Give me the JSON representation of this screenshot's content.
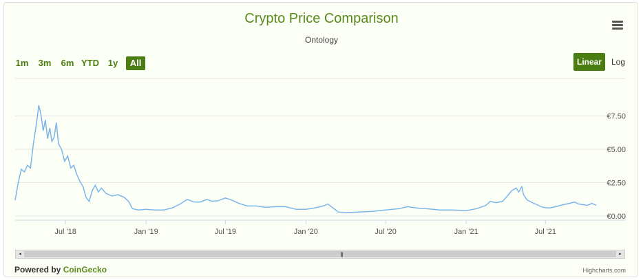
{
  "colors": {
    "line": "#7cb5ec",
    "accent": "#4a7d12",
    "title": "#5a8a1e"
  },
  "header": {
    "title": "Crypto Price Comparison",
    "subtitle": "Ontology",
    "menu_icon": "hamburger-menu-icon"
  },
  "range_selector": {
    "buttons": [
      "1m",
      "3m",
      "6m",
      "YTD",
      "1y",
      "All"
    ],
    "selected": "All"
  },
  "scale_toggle": {
    "linear": "Linear",
    "log": "Log",
    "selected": "Linear"
  },
  "scrollbar": {
    "left_arrow": "◂",
    "right_arrow": "▸",
    "grip": "|||"
  },
  "footer": {
    "powered_prefix": "Powered by ",
    "powered_link": "CoinGecko",
    "credits": "Highcharts.com"
  },
  "chart_data": {
    "type": "line",
    "title": "Crypto Price Comparison",
    "subtitle": "Ontology",
    "series": [
      {
        "values": [
          [
            "2018-03-08",
            1.2
          ],
          [
            "2018-03-15",
            2.5
          ],
          [
            "2018-03-22",
            3.5
          ],
          [
            "2018-03-29",
            3.3
          ],
          [
            "2018-04-05",
            3.8
          ],
          [
            "2018-04-12",
            3.6
          ],
          [
            "2018-04-19",
            5.5
          ],
          [
            "2018-04-26",
            7.0
          ],
          [
            "2018-05-01",
            8.3
          ],
          [
            "2018-05-06",
            7.6
          ],
          [
            "2018-05-11",
            6.4
          ],
          [
            "2018-05-16",
            7.2
          ],
          [
            "2018-05-21",
            5.8
          ],
          [
            "2018-05-26",
            6.6
          ],
          [
            "2018-05-31",
            5.6
          ],
          [
            "2018-06-05",
            5.9
          ],
          [
            "2018-06-10",
            7.0
          ],
          [
            "2018-06-15",
            5.4
          ],
          [
            "2018-06-22",
            5.0
          ],
          [
            "2018-06-29",
            4.1
          ],
          [
            "2018-07-06",
            4.5
          ],
          [
            "2018-07-13",
            3.6
          ],
          [
            "2018-07-20",
            3.8
          ],
          [
            "2018-07-27",
            3.1
          ],
          [
            "2018-08-03",
            2.6
          ],
          [
            "2018-08-10",
            2.2
          ],
          [
            "2018-08-17",
            1.4
          ],
          [
            "2018-08-24",
            1.1
          ],
          [
            "2018-08-31",
            1.9
          ],
          [
            "2018-09-07",
            2.3
          ],
          [
            "2018-09-14",
            1.8
          ],
          [
            "2018-09-21",
            2.1
          ],
          [
            "2018-10-01",
            1.7
          ],
          [
            "2018-10-15",
            1.5
          ],
          [
            "2018-10-29",
            1.6
          ],
          [
            "2018-11-12",
            1.4
          ],
          [
            "2018-11-22",
            1.1
          ],
          [
            "2018-12-01",
            0.55
          ],
          [
            "2018-12-15",
            0.45
          ],
          [
            "2019-01-01",
            0.5
          ],
          [
            "2019-01-20",
            0.45
          ],
          [
            "2019-02-10",
            0.45
          ],
          [
            "2019-03-01",
            0.6
          ],
          [
            "2019-03-20",
            0.9
          ],
          [
            "2019-04-05",
            1.25
          ],
          [
            "2019-04-20",
            1.05
          ],
          [
            "2019-05-05",
            1.05
          ],
          [
            "2019-05-20",
            1.25
          ],
          [
            "2019-06-01",
            1.1
          ],
          [
            "2019-06-15",
            1.15
          ],
          [
            "2019-07-01",
            1.35
          ],
          [
            "2019-07-15",
            1.2
          ],
          [
            "2019-08-01",
            0.95
          ],
          [
            "2019-08-20",
            0.75
          ],
          [
            "2019-09-10",
            0.75
          ],
          [
            "2019-10-01",
            0.65
          ],
          [
            "2019-10-25",
            0.7
          ],
          [
            "2019-11-15",
            0.7
          ],
          [
            "2019-12-10",
            0.5
          ],
          [
            "2020-01-01",
            0.5
          ],
          [
            "2020-01-20",
            0.6
          ],
          [
            "2020-02-10",
            0.75
          ],
          [
            "2020-02-20",
            0.9
          ],
          [
            "2020-03-01",
            0.65
          ],
          [
            "2020-03-15",
            0.3
          ],
          [
            "2020-04-01",
            0.25
          ],
          [
            "2020-05-01",
            0.3
          ],
          [
            "2020-06-01",
            0.35
          ],
          [
            "2020-07-01",
            0.45
          ],
          [
            "2020-08-01",
            0.55
          ],
          [
            "2020-08-20",
            0.7
          ],
          [
            "2020-09-10",
            0.6
          ],
          [
            "2020-10-01",
            0.55
          ],
          [
            "2020-11-01",
            0.45
          ],
          [
            "2020-12-01",
            0.45
          ],
          [
            "2021-01-01",
            0.4
          ],
          [
            "2021-01-25",
            0.55
          ],
          [
            "2021-02-15",
            0.8
          ],
          [
            "2021-02-25",
            1.1
          ],
          [
            "2021-03-10",
            1.0
          ],
          [
            "2021-03-25",
            1.1
          ],
          [
            "2021-04-05",
            1.5
          ],
          [
            "2021-04-15",
            1.9
          ],
          [
            "2021-04-25",
            2.1
          ],
          [
            "2021-05-01",
            1.8
          ],
          [
            "2021-05-08",
            2.2
          ],
          [
            "2021-05-12",
            1.6
          ],
          [
            "2021-05-20",
            1.2
          ],
          [
            "2021-06-01",
            1.0
          ],
          [
            "2021-06-15",
            0.8
          ],
          [
            "2021-06-25",
            0.65
          ],
          [
            "2021-07-10",
            0.6
          ],
          [
            "2021-07-25",
            0.7
          ],
          [
            "2021-08-10",
            0.85
          ],
          [
            "2021-08-25",
            0.95
          ],
          [
            "2021-09-05",
            1.05
          ],
          [
            "2021-09-15",
            0.9
          ],
          [
            "2021-09-25",
            0.85
          ],
          [
            "2021-10-05",
            0.8
          ],
          [
            "2021-10-15",
            0.95
          ],
          [
            "2021-10-25",
            0.8
          ]
        ]
      }
    ],
    "x_ticks": [
      {
        "date": "2018-07-01",
        "label": "Jul '18"
      },
      {
        "date": "2019-01-01",
        "label": "Jan '19"
      },
      {
        "date": "2019-07-01",
        "label": "Jul '19"
      },
      {
        "date": "2020-01-01",
        "label": "Jan '20"
      },
      {
        "date": "2020-07-01",
        "label": "Jul '20"
      },
      {
        "date": "2021-01-01",
        "label": "Jan '21"
      },
      {
        "date": "2021-07-01",
        "label": "Jul '21"
      }
    ],
    "y_ticks": [
      {
        "value": 0,
        "label": "€0.00"
      },
      {
        "value": 2.5,
        "label": "€2.50"
      },
      {
        "value": 5,
        "label": "€5.00"
      },
      {
        "value": 7.5,
        "label": "€7.50"
      }
    ],
    "xlim": [
      "2018-03-08",
      "2021-10-28"
    ],
    "ylim": [
      0,
      10
    ],
    "grid": "horizontal",
    "scale": "linear"
  }
}
